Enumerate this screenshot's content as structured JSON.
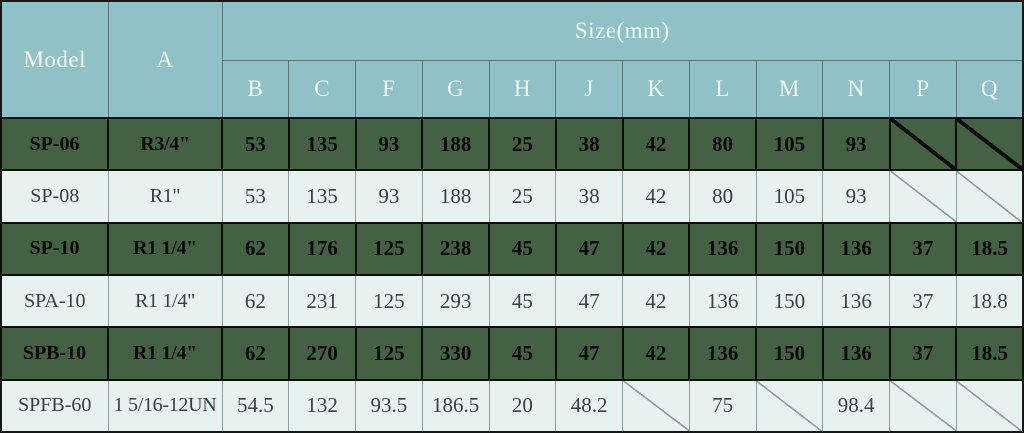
{
  "table": {
    "header": {
      "model_label": "Model",
      "a_label": "A",
      "size_label": "Size(mm)",
      "size_columns": [
        "B",
        "C",
        "F",
        "G",
        "H",
        "J",
        "K",
        "L",
        "M",
        "N",
        "P",
        "Q"
      ]
    },
    "rows": [
      {
        "model": "SP-06",
        "a": "R3/4\"",
        "style": "dark",
        "values": [
          "53",
          "135",
          "93",
          "188",
          "25",
          "38",
          "42",
          "80",
          "105",
          "93",
          "",
          ""
        ]
      },
      {
        "model": "SP-08",
        "a": "R1\"",
        "style": "light",
        "values": [
          "53",
          "135",
          "93",
          "188",
          "25",
          "38",
          "42",
          "80",
          "105",
          "93",
          "",
          ""
        ]
      },
      {
        "model": "SP-10",
        "a": "R1 1/4\"",
        "style": "dark",
        "values": [
          "62",
          "176",
          "125",
          "238",
          "45",
          "47",
          "42",
          "136",
          "150",
          "136",
          "37",
          "18.5"
        ]
      },
      {
        "model": "SPA-10",
        "a": "R1 1/4\"",
        "style": "light",
        "values": [
          "62",
          "231",
          "125",
          "293",
          "45",
          "47",
          "42",
          "136",
          "150",
          "136",
          "37",
          "18.8"
        ]
      },
      {
        "model": "SPB-10",
        "a": "R1 1/4\"",
        "style": "dark",
        "values": [
          "62",
          "270",
          "125",
          "330",
          "45",
          "47",
          "42",
          "136",
          "150",
          "136",
          "37",
          "18.5"
        ]
      },
      {
        "model": "SPFB-60",
        "a": "1 5/16-12UN",
        "style": "light",
        "values": [
          "54.5",
          "132",
          "93.5",
          "186.5",
          "20",
          "48.2",
          "",
          "75",
          "",
          "98.4",
          "",
          ""
        ]
      }
    ],
    "empty_cell_meaning": "diagonal-slash (no value)"
  },
  "colors": {
    "header_bg": "#8fc1c6",
    "header_text": "#f3f9f9",
    "dark_row_bg": "#446243",
    "dark_row_text": "#070707",
    "light_row_bg": "#e7f1f0",
    "light_row_text": "#384142",
    "dark_border": "#0d0d0d",
    "light_border": "#8fa1a1"
  }
}
